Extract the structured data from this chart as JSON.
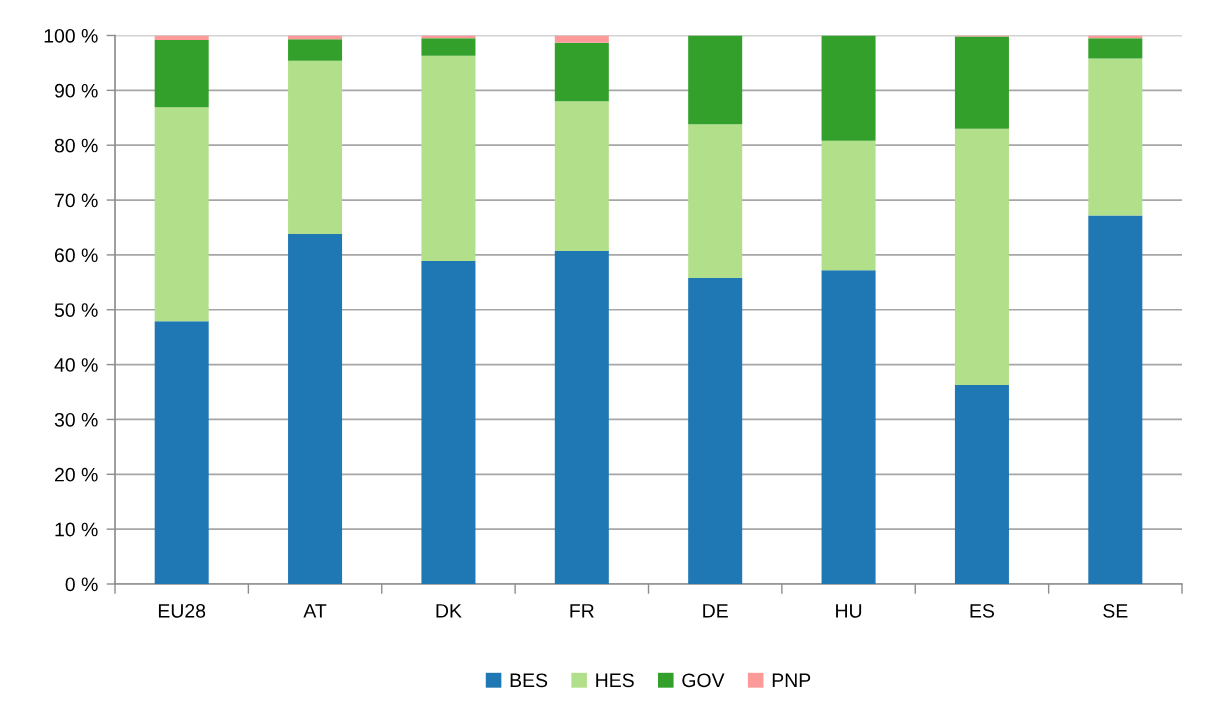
{
  "chart_data": {
    "type": "bar",
    "stacked": true,
    "categories": [
      "EU28",
      "AT",
      "DK",
      "FR",
      "DE",
      "HU",
      "ES",
      "SE"
    ],
    "series": [
      {
        "name": "BES",
        "color": "#1f77b4",
        "values": [
          47.9,
          63.8,
          58.9,
          60.7,
          55.8,
          57.2,
          36.3,
          67.2
        ]
      },
      {
        "name": "HES",
        "color": "#b2df8a",
        "values": [
          39.0,
          31.6,
          37.4,
          27.3,
          28.0,
          23.6,
          46.7,
          28.6
        ]
      },
      {
        "name": "GOV",
        "color": "#33a02c",
        "values": [
          12.3,
          3.9,
          3.2,
          10.7,
          16.2,
          19.2,
          16.8,
          3.7
        ]
      },
      {
        "name": "PNP",
        "color": "#fb9a99",
        "values": [
          0.8,
          0.7,
          0.5,
          1.3,
          0,
          0,
          0.2,
          0.5
        ]
      }
    ],
    "ylim": [
      0,
      100
    ],
    "yticks": [
      {
        "value": 0,
        "label": "0 %"
      },
      {
        "value": 10,
        "label": "10 %"
      },
      {
        "value": 20,
        "label": "20 %"
      },
      {
        "value": 30,
        "label": "30 %"
      },
      {
        "value": 40,
        "label": "40 %"
      },
      {
        "value": 50,
        "label": "50 %"
      },
      {
        "value": 60,
        "label": "60 %"
      },
      {
        "value": 70,
        "label": "70 %"
      },
      {
        "value": 80,
        "label": "80 %"
      },
      {
        "value": 90,
        "label": "90 %"
      },
      {
        "value": 100,
        "label": "100 %"
      }
    ],
    "grid": "y",
    "legend": "bottom"
  }
}
